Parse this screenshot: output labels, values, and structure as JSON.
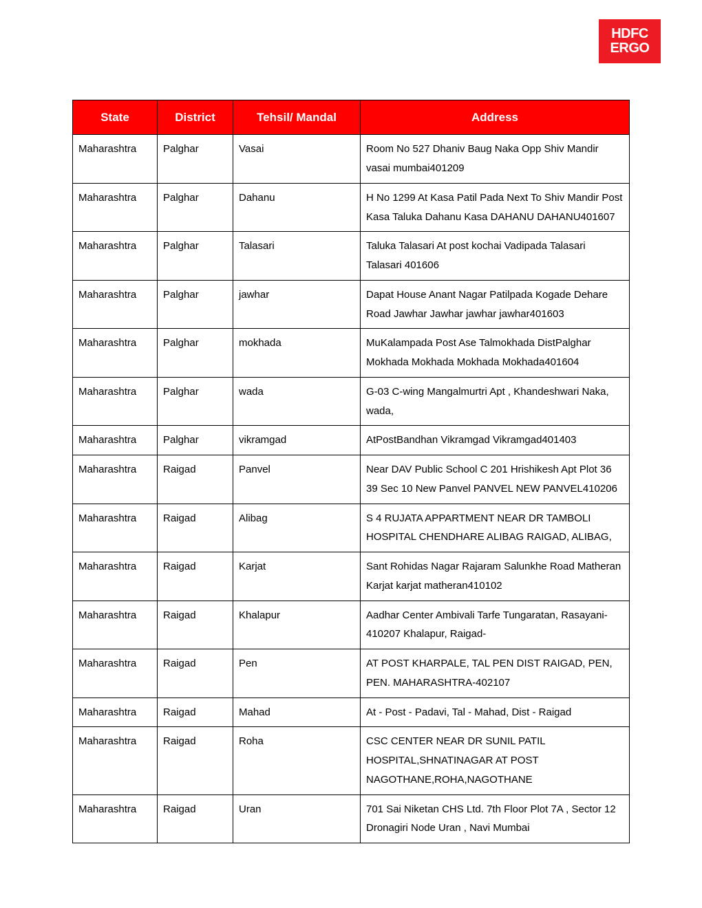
{
  "logo": {
    "line1": "HDFC",
    "line2": "ERGO",
    "bg": "#ed1c24",
    "fg": "#ffffff"
  },
  "table": {
    "header_bg": "#ff0000",
    "header_fg": "#ffffff",
    "columns": [
      "State",
      "District",
      "Tehsil/ Mandal",
      "Address"
    ],
    "rows": [
      [
        "Maharashtra",
        "Palghar",
        "Vasai",
        "Room No 527 Dhaniv Baug Naka Opp Shiv Mandir vasai mumbai401209"
      ],
      [
        "Maharashtra",
        "Palghar",
        "Dahanu",
        "H No 1299 At Kasa Patil Pada Next To Shiv Mandir Post Kasa Taluka Dahanu Kasa DAHANU DAHANU401607"
      ],
      [
        "Maharashtra",
        "Palghar",
        "Talasari",
        "Taluka Talasari At post kochai Vadipada Talasari Talasari 401606"
      ],
      [
        "Maharashtra",
        "Palghar",
        "jawhar",
        "Dapat House Anant Nagar Patilpada Kogade Dehare Road Jawhar Jawhar jawhar jawhar401603"
      ],
      [
        "Maharashtra",
        "Palghar",
        "mokhada",
        "MuKalampada Post Ase Talmokhada DistPalghar Mokhada Mokhada Mokhada Mokhada401604"
      ],
      [
        "Maharashtra",
        "Palghar",
        "wada",
        "G-03  C-wing  Mangalmurtri Apt , Khandeshwari Naka, wada,"
      ],
      [
        "Maharashtra",
        "Palghar",
        "vikramgad",
        "AtPostBandhan Vikramgad Vikramgad401403"
      ],
      [
        "Maharashtra",
        "Raigad",
        "Panvel",
        "Near DAV Public School C 201 Hrishikesh Apt Plot 36 39 Sec 10 New Panvel PANVEL NEW PANVEL410206"
      ],
      [
        "Maharashtra",
        "Raigad",
        "Alibag",
        "S 4 RUJATA APPARTMENT NEAR DR TAMBOLI HOSPITAL CHENDHARE ALIBAG RAIGAD, ALIBAG,"
      ],
      [
        "Maharashtra",
        "Raigad",
        "Karjat",
        "Sant Rohidas Nagar Rajaram Salunkhe Road Matheran Karjat karjat matheran410102"
      ],
      [
        "Maharashtra",
        "Raigad",
        "Khalapur",
        "Aadhar Center Ambivali Tarfe Tungaratan, Rasayani-410207 Khalapur, Raigad-"
      ],
      [
        "Maharashtra",
        "Raigad",
        "Pen",
        "AT  POST KHARPALE, TAL PEN  DIST RAIGAD, PEN, PEN.  MAHARASHTRA-402107"
      ],
      [
        "Maharashtra",
        "Raigad",
        "Mahad",
        "At - Post - Padavi, Tal - Mahad, Dist - Raigad"
      ],
      [
        "Maharashtra",
        "Raigad",
        "Roha",
        "CSC CENTER NEAR DR SUNIL PATIL HOSPITAL,SHNATINAGAR AT POST NAGOTHANE,ROHA,NAGOTHANE"
      ],
      [
        "Maharashtra",
        "Raigad",
        "Uran",
        "701  Sai Niketan CHS Ltd.  7th Floor  Plot 7A , Sector 12  Dronagiri Node  Uran , Navi Mumbai"
      ]
    ]
  }
}
